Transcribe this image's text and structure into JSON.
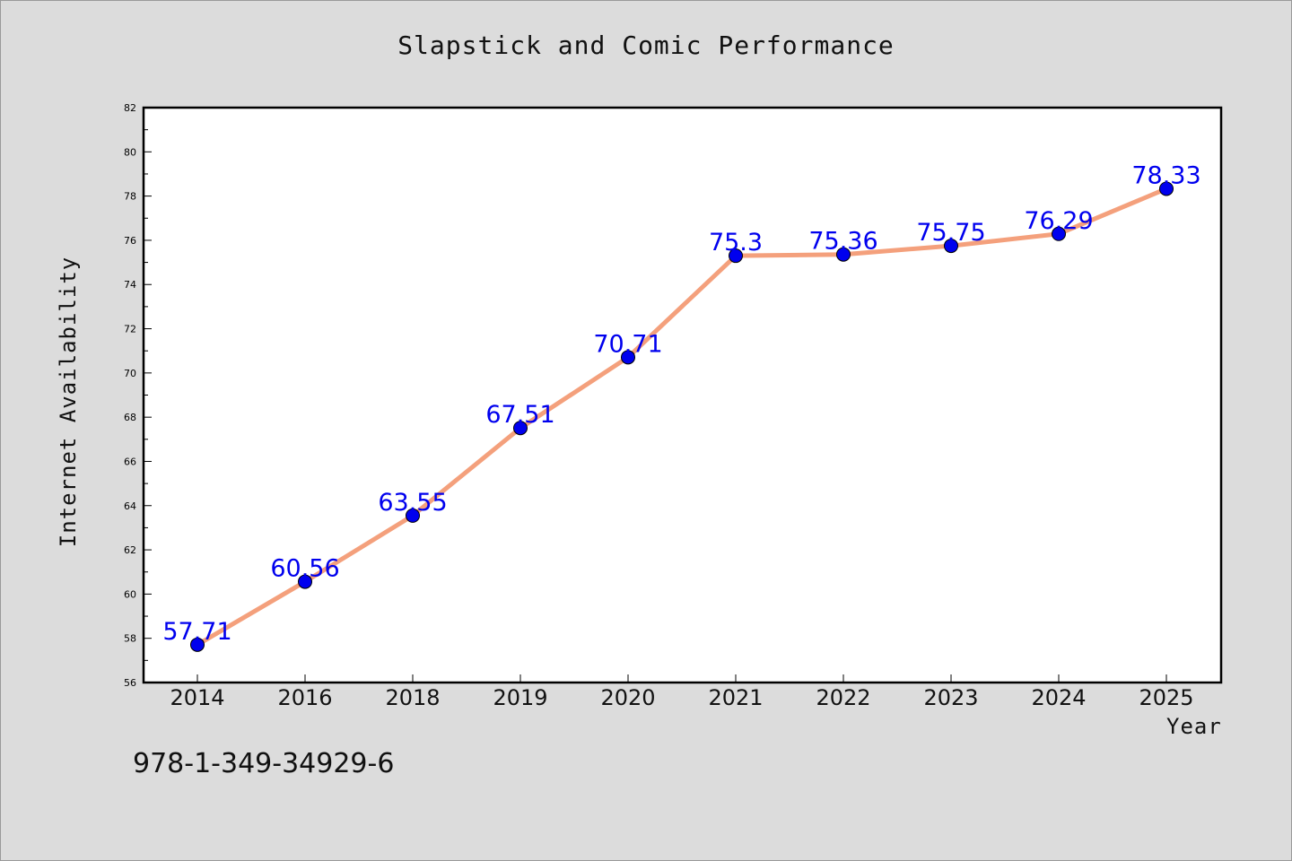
{
  "chart_data": {
    "type": "line",
    "title": "Slapstick and Comic Performance",
    "xlabel": "Year",
    "ylabel": "Internet Availability",
    "categories": [
      "2014",
      "2016",
      "2018",
      "2019",
      "2020",
      "2021",
      "2022",
      "2023",
      "2024",
      "2025"
    ],
    "series": [
      {
        "values": [
          57.71,
          60.56,
          63.55,
          67.51,
          70.71,
          75.3,
          75.36,
          75.75,
          76.29,
          78.33
        ],
        "labels": [
          "57.71",
          "60.56",
          "63.55",
          "67.51",
          "70.71",
          "75.3",
          "75.36",
          "75.75",
          "76.29",
          "78.33"
        ],
        "line_color": "#f4a07c",
        "marker_color": "#0000ee"
      }
    ],
    "ylim": [
      56,
      82
    ],
    "yticks": [
      "56",
      "58",
      "60",
      "62",
      "64",
      "66",
      "68",
      "70",
      "72",
      "74",
      "76",
      "78",
      "80",
      "82"
    ],
    "grid": false,
    "legend": "none"
  },
  "footer": {
    "isbn": "978-1-349-34929-6"
  },
  "colors": {
    "background": "#dcdcdc",
    "plot_background": "#ffffff",
    "label_color": "#0000ee"
  }
}
